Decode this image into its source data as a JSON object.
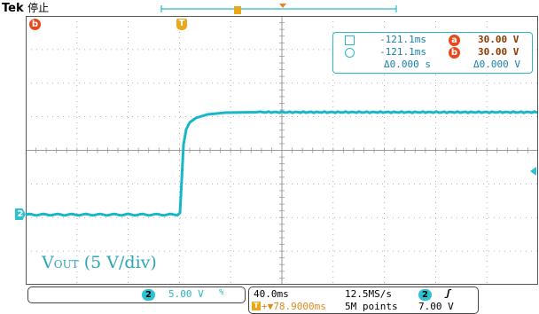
{
  "header": {
    "brand": "Tek",
    "status": "停止"
  },
  "markers": {
    "ref_b": "b",
    "trigger": "T",
    "channel": "2"
  },
  "cursors": {
    "row1_time": "-121.1ms",
    "row1_badge": "a",
    "row1_value": "30.00 V",
    "row2_time": "-121.1ms",
    "row2_badge": "b",
    "row2_value": "30.00 V",
    "delta_time": "Δ0.000 s",
    "delta_value": "Δ0.000 V"
  },
  "trace_label": {
    "main": "V",
    "sub": "OUT",
    "rest": " (5 V/div)"
  },
  "status_bar": {
    "ch_badge": "2",
    "ch_scale": "5.00 V",
    "ch_bw": "%",
    "timebase": "40.0ms",
    "sample_rate": "12.5MS/s",
    "trig_ch_badge": "2",
    "trig_slope": "ʃ",
    "trig_pos_icon": "T",
    "trig_pos": "+▼78.9000ms",
    "record_len": "5M points",
    "trig_level": "7.00 V"
  },
  "colors": {
    "trace": "#17b7c8",
    "accent": "#2bb7c4",
    "marker_orange": "#e8841b",
    "marker_red": "#e8481c",
    "grid": "#9a9a9a"
  }
}
